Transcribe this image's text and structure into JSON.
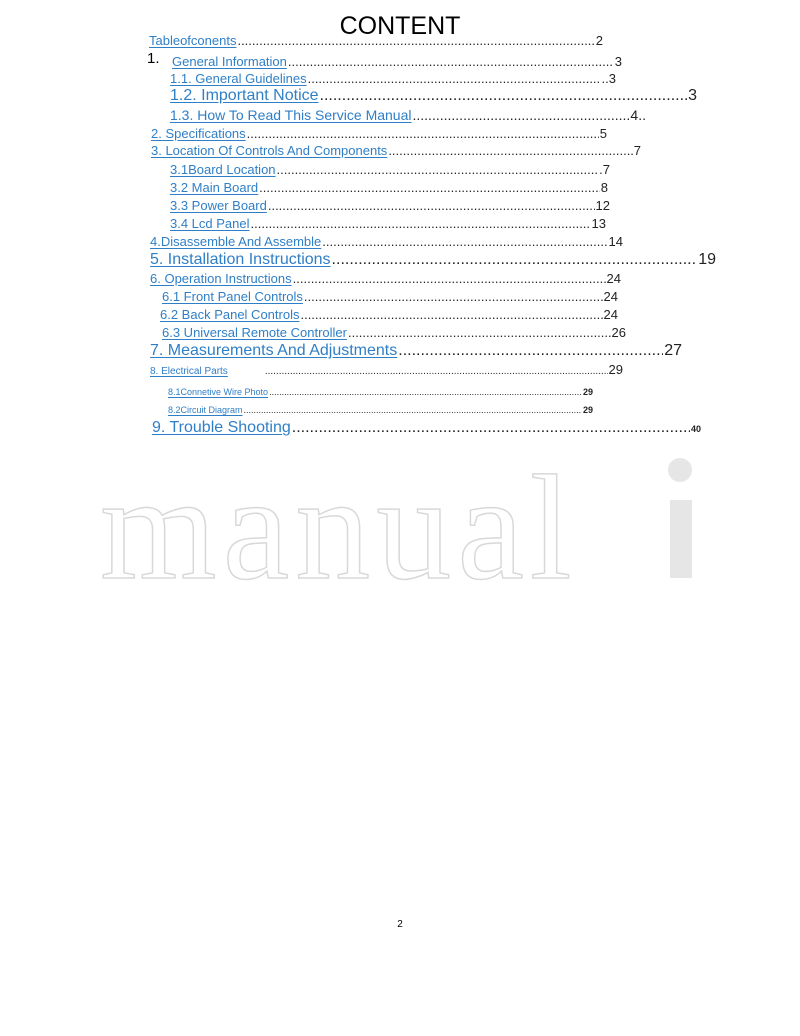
{
  "title": "CONTENT",
  "section1_number": "1.",
  "entries": [
    {
      "label": "Tableofconents",
      "page": "2"
    },
    {
      "label": "General Information",
      "page": "3"
    },
    {
      "label": "1.1. General Guidelines",
      "page": "..3"
    },
    {
      "label": "1.2. Important Notice",
      "page": "3"
    },
    {
      "label": "1.3. How To Read This Service Manual",
      "page": "4.."
    },
    {
      "label": "2. Specifications",
      "page": "5"
    },
    {
      "label": "3. Location Of Controls And Components",
      "page": "7"
    },
    {
      "label": "3.1Board Location",
      "page": ".7"
    },
    {
      "label": "3.2 Main Board",
      "page": "8"
    },
    {
      "label": "3.3 Power Board",
      "page": "12"
    },
    {
      "label": "3.4 Lcd Panel",
      "page": "13"
    },
    {
      "label": "4.Disassemble And Assemble",
      "page": "14"
    },
    {
      "label": "5. Installation Instructions",
      "page": "19"
    },
    {
      "label": "6. Operation Instructions",
      "page": "24"
    },
    {
      "label": "6.1 Front Panel Controls",
      "page": "24"
    },
    {
      "label": "6.2 Back Panel Controls",
      "page": "24"
    },
    {
      "label": "6.3 Universal Remote Controller",
      "page": "26"
    },
    {
      "label": "7. Measurements And Adjustments",
      "page": "27"
    },
    {
      "label": "8. Electrical Parts",
      "page": "29"
    },
    {
      "label": "8.1Connetive Wire Photo",
      "page": "29"
    },
    {
      "label": "8.2Circuit Diagram",
      "page": "29"
    },
    {
      "label": "9. Trouble Shooting",
      "page": "40"
    }
  ],
  "watermark": "manuali",
  "page_number": "2",
  "colors": {
    "link": "#2f7fc7",
    "text": "#222222",
    "watermark": "#d8d8d8"
  }
}
